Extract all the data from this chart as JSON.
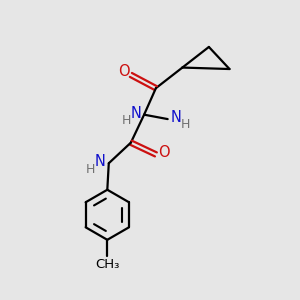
{
  "background_color": "#e6e6e6",
  "bond_color": "#000000",
  "N_color": "#1010cc",
  "O_color": "#cc1010",
  "H_color": "#707070",
  "line_width": 1.6,
  "figsize": [
    3.0,
    3.0
  ],
  "dpi": 100,
  "xlim": [
    0,
    10
  ],
  "ylim": [
    0,
    10
  ]
}
